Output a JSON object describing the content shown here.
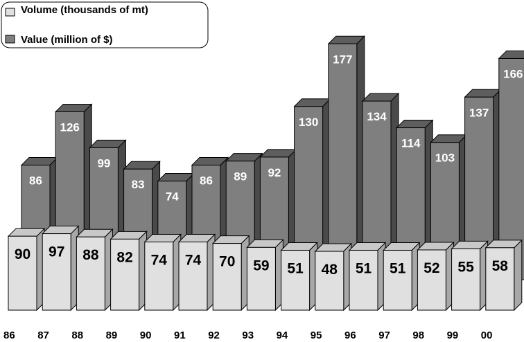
{
  "chart_data": {
    "type": "bar",
    "categories": [
      "86",
      "87",
      "88",
      "89",
      "90",
      "91",
      "92",
      "93",
      "94",
      "95",
      "96",
      "97",
      "98",
      "99",
      "00"
    ],
    "series": [
      {
        "name": "Value (million of $)",
        "values": [
          86,
          126,
          99,
          83,
          74,
          86,
          89,
          92,
          130,
          177,
          134,
          114,
          103,
          137,
          166
        ]
      },
      {
        "name": "Volume (thousands of mt)",
        "values": [
          90,
          97,
          88,
          82,
          74,
          74,
          70,
          59,
          51,
          48,
          51,
          51,
          52,
          55,
          58
        ]
      }
    ],
    "title": "",
    "xlabel": "",
    "ylabel": "",
    "legend_position": "top-left",
    "grid": false,
    "colors": {
      "value_face": "#7f7f7f",
      "value_side": "#4a4a4a",
      "value_top": "#5e5e5e",
      "volume_face": "#e0e0e0",
      "volume_side": "#a8a8a8",
      "volume_top": "#c8c8c8",
      "outline": "#000000"
    }
  },
  "legend": {
    "items": [
      {
        "label": "Volume (thousands of mt)",
        "color": "#e0e0e0"
      },
      {
        "label": "Value (million of $)",
        "color": "#7f7f7f"
      }
    ]
  }
}
